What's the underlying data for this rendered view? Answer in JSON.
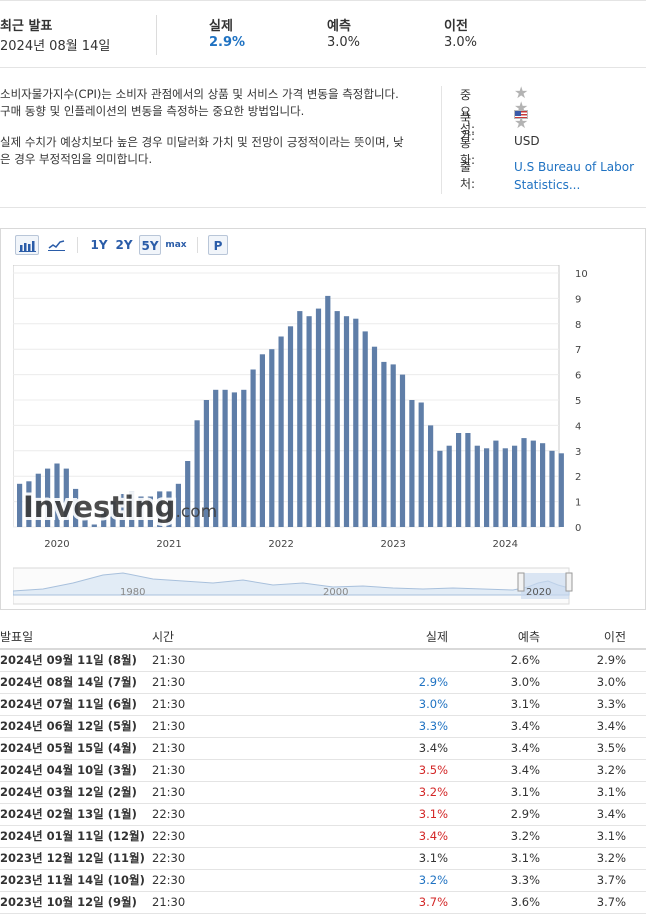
{
  "summary": {
    "latest_label": "최근 발표",
    "latest_date": "2024년 08월 14일",
    "actual_label": "실제",
    "actual_value": "2.9%",
    "forecast_label": "예측",
    "forecast_value": "3.0%",
    "previous_label": "이전",
    "previous_value": "3.0%"
  },
  "description": {
    "p1": "소비자물가지수(CPI)는 소비자 관점에서의 상품 및 서비스 가격 변동을 측정합니다. 구매 동향 및 인플레이션의 변동을 측정하는 중요한 방법입니다.",
    "p2": "실제 수치가 예상치보다 높은 경우 미달러화 가치 및 전망이 긍정적이라는 뜻이며, 낮은 경우 부정적임을 의미합니다."
  },
  "meta": {
    "importance_label": "중요성:",
    "importance_stars": 3,
    "country_label": "국가:",
    "country_icon": "us-flag-icon",
    "currency_label": "통화:",
    "currency_value": "USD",
    "source_label": "출처:",
    "source_value": "U.S Bureau of Labor Statistics..."
  },
  "toolbar": {
    "bar_icon": "bar-chart-icon",
    "line_icon": "line-chart-icon",
    "ranges": [
      "1Y",
      "2Y",
      "5Y",
      "max"
    ],
    "selected_range": "5Y",
    "p_label": "P"
  },
  "chart_data": {
    "type": "bar",
    "color": "#5f7ea8",
    "y_ticks": [
      "0",
      "1",
      "2",
      "3",
      "4",
      "5",
      "6",
      "7",
      "8",
      "9",
      "10"
    ],
    "ylim": [
      0,
      10
    ],
    "x_tick_labels": [
      "2020",
      "2021",
      "2022",
      "2023",
      "2024"
    ],
    "x_start": "2019-09",
    "values": [
      1.7,
      1.8,
      2.1,
      2.3,
      2.5,
      2.3,
      1.5,
      0.3,
      0.1,
      0.6,
      1.0,
      1.3,
      1.4,
      1.2,
      1.2,
      1.4,
      1.4,
      1.7,
      2.6,
      4.2,
      5.0,
      5.4,
      5.4,
      5.3,
      5.4,
      6.2,
      6.8,
      7.0,
      7.5,
      7.9,
      8.5,
      8.3,
      8.6,
      9.1,
      8.5,
      8.3,
      8.2,
      7.7,
      7.1,
      6.5,
      6.4,
      6.0,
      5.0,
      4.9,
      4.0,
      3.0,
      3.2,
      3.7,
      3.7,
      3.2,
      3.1,
      3.4,
      3.1,
      3.2,
      3.5,
      3.4,
      3.3,
      3.0,
      2.9
    ],
    "watermark": "Investing.com",
    "navigator_labels": [
      "1980",
      "2000",
      "2020"
    ]
  },
  "table": {
    "headers": {
      "date": "발표일",
      "time": "시간",
      "actual": "실제",
      "forecast": "예측",
      "previous": "이전"
    },
    "rows": [
      {
        "date": "2024년 09월 11일 (8월)",
        "time": "21:30",
        "actual": "",
        "actual_color": "",
        "forecast": "2.6%",
        "previous": "2.9%"
      },
      {
        "date": "2024년 08월 14일 (7월)",
        "time": "21:30",
        "actual": "2.9%",
        "actual_color": "blue",
        "forecast": "3.0%",
        "previous": "3.0%"
      },
      {
        "date": "2024년 07월 11일 (6월)",
        "time": "21:30",
        "actual": "3.0%",
        "actual_color": "blue",
        "forecast": "3.1%",
        "previous": "3.3%"
      },
      {
        "date": "2024년 06월 12일 (5월)",
        "time": "21:30",
        "actual": "3.3%",
        "actual_color": "blue",
        "forecast": "3.4%",
        "previous": "3.4%"
      },
      {
        "date": "2024년 05월 15일 (4월)",
        "time": "21:30",
        "actual": "3.4%",
        "actual_color": "",
        "forecast": "3.4%",
        "previous": "3.5%"
      },
      {
        "date": "2024년 04월 10일 (3월)",
        "time": "21:30",
        "actual": "3.5%",
        "actual_color": "red",
        "forecast": "3.4%",
        "previous": "3.2%"
      },
      {
        "date": "2024년 03월 12일 (2월)",
        "time": "21:30",
        "actual": "3.2%",
        "actual_color": "red",
        "forecast": "3.1%",
        "previous": "3.1%"
      },
      {
        "date": "2024년 02월 13일 (1월)",
        "time": "22:30",
        "actual": "3.1%",
        "actual_color": "red",
        "forecast": "2.9%",
        "previous": "3.4%"
      },
      {
        "date": "2024년 01월 11일 (12월)",
        "time": "22:30",
        "actual": "3.4%",
        "actual_color": "red",
        "forecast": "3.2%",
        "previous": "3.1%"
      },
      {
        "date": "2023년 12월 12일 (11월)",
        "time": "22:30",
        "actual": "3.1%",
        "actual_color": "",
        "forecast": "3.1%",
        "previous": "3.2%"
      },
      {
        "date": "2023년 11월 14일 (10월)",
        "time": "22:30",
        "actual": "3.2%",
        "actual_color": "blue",
        "forecast": "3.3%",
        "previous": "3.7%"
      },
      {
        "date": "2023년 10월 12일 (9월)",
        "time": "21:30",
        "actual": "3.7%",
        "actual_color": "red",
        "forecast": "3.6%",
        "previous": "3.7%"
      }
    ]
  }
}
